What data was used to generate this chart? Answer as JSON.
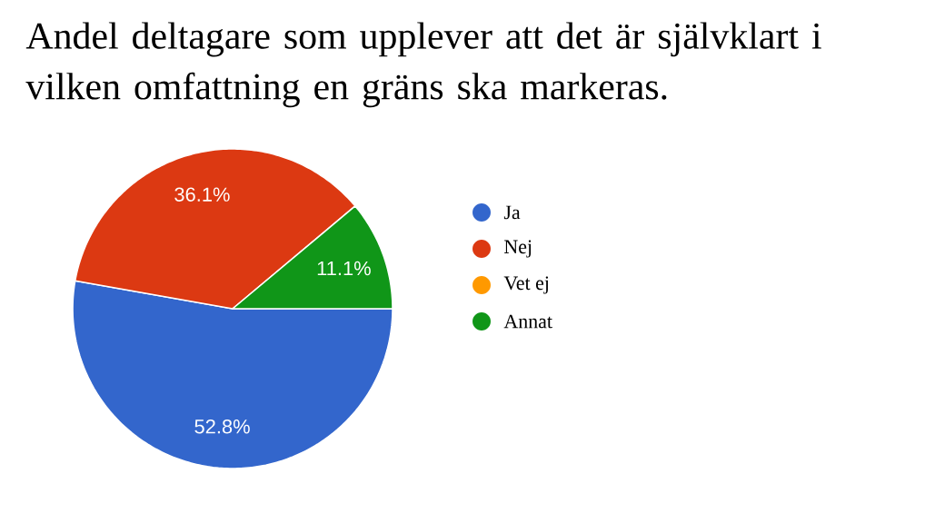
{
  "chart_data": {
    "type": "pie",
    "title": "Andel deltagare som upplever att det är självklart i vilken omfattning en gräns ska markeras.",
    "categories": [
      "Ja",
      "Nej",
      "Vet ej",
      "Annat"
    ],
    "values": [
      52.8,
      36.1,
      0,
      11.1
    ],
    "colors": [
      "#3366cc",
      "#dc3912",
      "#ff9900",
      "#109618"
    ],
    "value_labels": [
      "52.8%",
      "36.1%",
      null,
      "11.1%"
    ],
    "legend": "right"
  }
}
